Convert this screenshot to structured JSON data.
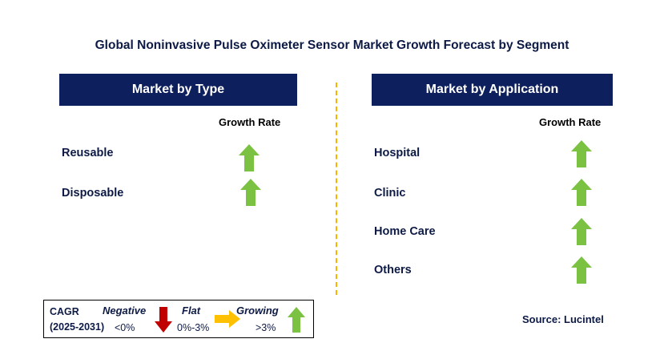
{
  "title": "Global Noninvasive Pulse Oximeter Sensor Market Growth Forecast by Segment",
  "left_panel": {
    "header": "Market by Type",
    "growth_head": "Growth Rate",
    "items": [
      {
        "label": "Reusable",
        "trend": "growing"
      },
      {
        "label": "Disposable",
        "trend": "growing"
      }
    ]
  },
  "right_panel": {
    "header": "Market by Application",
    "growth_head": "Growth Rate",
    "items": [
      {
        "label": "Hospital",
        "trend": "growing"
      },
      {
        "label": "Clinic",
        "trend": "growing"
      },
      {
        "label": "Home Care",
        "trend": "growing"
      },
      {
        "label": "Others",
        "trend": "growing"
      }
    ]
  },
  "legend": {
    "cagr": "CAGR",
    "period": "(2025-2031)",
    "negative": {
      "label": "Negative",
      "value": "<0%",
      "icon": "down-arrow-icon",
      "color": "#c00000"
    },
    "flat": {
      "label": "Flat",
      "value": "0%-3%",
      "icon": "right-arrow-icon",
      "color": "#ffc000"
    },
    "growing": {
      "label": "Growing",
      "value": ">3%",
      "icon": "up-arrow-icon",
      "color": "#7cc242"
    }
  },
  "source": "Source: Lucintel",
  "colors": {
    "header_bg": "#0d1f5c",
    "divider": "#f5b400",
    "up_arrow": "#7cc242"
  }
}
